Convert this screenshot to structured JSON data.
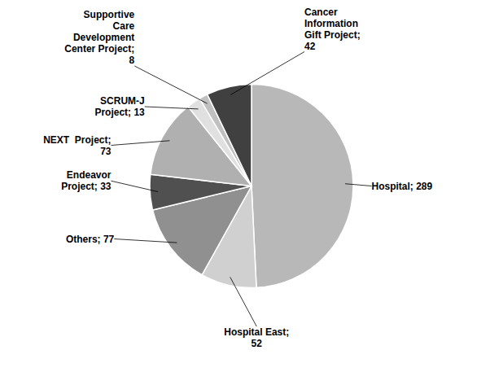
{
  "chart_data": {
    "type": "pie",
    "values": [
      289,
      52,
      77,
      33,
      73,
      13,
      8,
      42
    ],
    "value_labels": [
      "Hospital; 289",
      "Hospital East;\n52",
      "Others; 77",
      "Endeavor\nProject; 33",
      "NEXT  Project;\n73",
      "SCRUM-J\nProject; 13",
      "Supportive\nCare\nDevelopment\nCenter Project;\n8",
      "Cancer\nInformation\nGift Project;\n42"
    ],
    "colors": [
      "#b8b8b8",
      "#d0d0d0",
      "#909090",
      "#505050",
      "#b0b0b0",
      "#e0e0e0",
      "#c0c0c0",
      "#404040"
    ]
  }
}
